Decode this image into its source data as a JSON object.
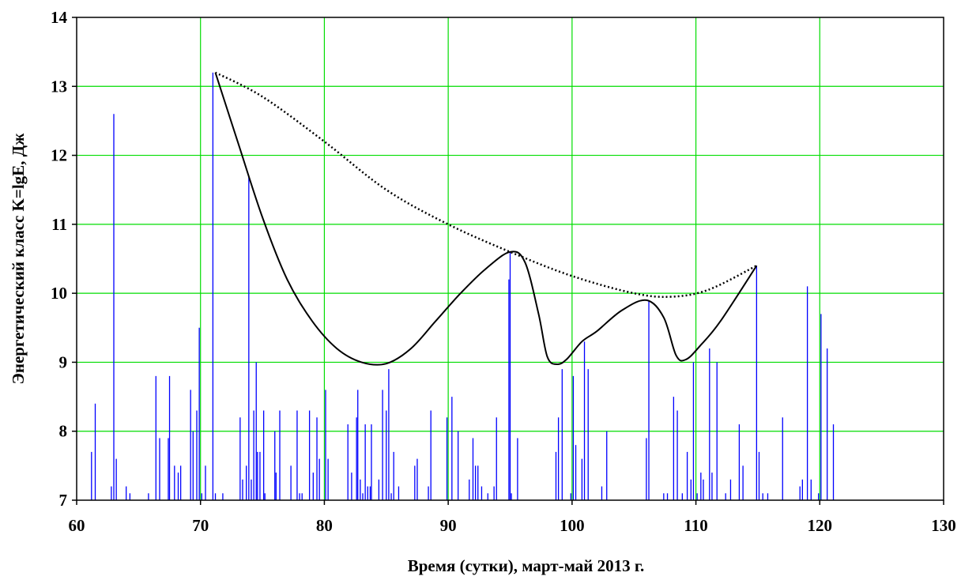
{
  "chart_data": {
    "type": "line",
    "title": "",
    "xlabel": "Время (сутки), март-май 2013 г.",
    "ylabel": "Энергетический класс K=lgE, Дж",
    "xlim": [
      60,
      130
    ],
    "ylim": [
      7,
      14
    ],
    "xticks": [
      60,
      70,
      80,
      90,
      100,
      110,
      120,
      130
    ],
    "yticks": [
      7,
      8,
      9,
      10,
      11,
      12,
      13,
      14
    ],
    "grid": true,
    "legend": "none",
    "colors": {
      "events": "#0000ff",
      "grid": "#00dd00",
      "curve": "#000000",
      "envelope": "#000000",
      "axes": "#000000"
    },
    "series": [
      {
        "kind": "impulses",
        "baseline": 7,
        "points": [
          [
            61.2,
            7.7
          ],
          [
            61.5,
            8.4
          ],
          [
            62.8,
            7.2
          ],
          [
            63.0,
            12.6
          ],
          [
            63.2,
            7.6
          ],
          [
            64.0,
            7.2
          ],
          [
            64.3,
            7.1
          ],
          [
            65.8,
            7.1
          ],
          [
            66.4,
            8.8
          ],
          [
            66.7,
            7.9
          ],
          [
            67.4,
            7.9
          ],
          [
            67.5,
            8.8
          ],
          [
            67.9,
            7.5
          ],
          [
            68.2,
            7.4
          ],
          [
            68.4,
            7.5
          ],
          [
            69.2,
            8.6
          ],
          [
            69.4,
            8.0
          ],
          [
            69.7,
            8.3
          ],
          [
            69.9,
            9.5
          ],
          [
            70.1,
            7.1
          ],
          [
            70.4,
            7.5
          ],
          [
            71.0,
            13.2
          ],
          [
            71.2,
            7.1
          ],
          [
            71.8,
            7.1
          ],
          [
            73.2,
            8.2
          ],
          [
            73.4,
            7.3
          ],
          [
            73.7,
            7.5
          ],
          [
            73.9,
            11.7
          ],
          [
            74.1,
            7.3
          ],
          [
            74.3,
            8.3
          ],
          [
            74.5,
            9.0
          ],
          [
            74.6,
            7.7
          ],
          [
            74.8,
            7.7
          ],
          [
            75.1,
            8.3
          ],
          [
            75.2,
            7.1
          ],
          [
            76.0,
            8.0
          ],
          [
            76.1,
            7.4
          ],
          [
            76.4,
            8.3
          ],
          [
            77.3,
            7.5
          ],
          [
            77.8,
            8.3
          ],
          [
            78.0,
            7.1
          ],
          [
            78.2,
            7.1
          ],
          [
            78.8,
            8.3
          ],
          [
            79.1,
            7.4
          ],
          [
            79.4,
            8.2
          ],
          [
            79.6,
            7.6
          ],
          [
            80.1,
            8.6
          ],
          [
            80.3,
            7.6
          ],
          [
            81.9,
            8.1
          ],
          [
            82.2,
            7.4
          ],
          [
            82.6,
            8.2
          ],
          [
            82.7,
            8.6
          ],
          [
            82.9,
            7.3
          ],
          [
            83.1,
            7.1
          ],
          [
            83.3,
            8.1
          ],
          [
            83.5,
            7.2
          ],
          [
            83.7,
            7.2
          ],
          [
            83.8,
            8.1
          ],
          [
            84.4,
            7.3
          ],
          [
            84.7,
            8.6
          ],
          [
            85.0,
            8.3
          ],
          [
            85.2,
            8.9
          ],
          [
            85.4,
            7.1
          ],
          [
            85.6,
            7.7
          ],
          [
            86.0,
            7.2
          ],
          [
            87.3,
            7.5
          ],
          [
            87.5,
            7.6
          ],
          [
            88.4,
            7.2
          ],
          [
            88.6,
            8.3
          ],
          [
            89.9,
            8.2
          ],
          [
            90.3,
            8.5
          ],
          [
            90.8,
            8.0
          ],
          [
            91.7,
            7.3
          ],
          [
            92.0,
            7.9
          ],
          [
            92.2,
            7.5
          ],
          [
            92.4,
            7.5
          ],
          [
            92.7,
            7.2
          ],
          [
            93.2,
            7.1
          ],
          [
            93.7,
            7.2
          ],
          [
            93.9,
            8.2
          ],
          [
            94.9,
            10.2
          ],
          [
            95.0,
            10.6
          ],
          [
            95.1,
            7.1
          ],
          [
            95.6,
            7.9
          ],
          [
            98.7,
            7.7
          ],
          [
            98.9,
            8.2
          ],
          [
            99.2,
            8.9
          ],
          [
            99.9,
            7.1
          ],
          [
            100.1,
            8.8
          ],
          [
            100.3,
            7.8
          ],
          [
            100.8,
            7.6
          ],
          [
            101.0,
            9.3
          ],
          [
            101.3,
            8.9
          ],
          [
            102.4,
            7.2
          ],
          [
            102.8,
            8.0
          ],
          [
            106.0,
            7.9
          ],
          [
            106.2,
            9.9
          ],
          [
            107.4,
            7.1
          ],
          [
            107.7,
            7.1
          ],
          [
            108.2,
            8.5
          ],
          [
            108.5,
            8.3
          ],
          [
            108.9,
            7.1
          ],
          [
            109.3,
            7.7
          ],
          [
            109.6,
            7.3
          ],
          [
            109.8,
            9.0
          ],
          [
            110.1,
            7.1
          ],
          [
            110.4,
            7.4
          ],
          [
            110.6,
            7.3
          ],
          [
            111.1,
            9.2
          ],
          [
            111.3,
            7.4
          ],
          [
            111.7,
            9.0
          ],
          [
            112.4,
            7.1
          ],
          [
            112.8,
            7.3
          ],
          [
            113.5,
            8.1
          ],
          [
            113.8,
            7.5
          ],
          [
            114.9,
            10.4
          ],
          [
            115.1,
            7.7
          ],
          [
            115.4,
            7.1
          ],
          [
            115.8,
            7.1
          ],
          [
            117.0,
            8.2
          ],
          [
            118.4,
            7.2
          ],
          [
            118.6,
            7.3
          ],
          [
            119.0,
            10.1
          ],
          [
            119.3,
            7.3
          ],
          [
            119.9,
            7.1
          ],
          [
            120.1,
            9.7
          ],
          [
            120.6,
            9.2
          ],
          [
            121.1,
            8.1
          ]
        ]
      },
      {
        "kind": "smooth-curve",
        "style": "solid",
        "points": [
          [
            71.2,
            13.2
          ],
          [
            73.0,
            12.2
          ],
          [
            75.0,
            11.1
          ],
          [
            77.0,
            10.2
          ],
          [
            79.0,
            9.6
          ],
          [
            81.0,
            9.2
          ],
          [
            83.0,
            9.0
          ],
          [
            85.0,
            8.98
          ],
          [
            87.0,
            9.2
          ],
          [
            89.0,
            9.6
          ],
          [
            91.0,
            10.0
          ],
          [
            93.0,
            10.35
          ],
          [
            95.0,
            10.6
          ],
          [
            96.2,
            10.45
          ],
          [
            97.3,
            9.7
          ],
          [
            98.0,
            9.08
          ],
          [
            98.8,
            8.97
          ],
          [
            99.6,
            9.05
          ],
          [
            100.8,
            9.3
          ],
          [
            102.0,
            9.45
          ],
          [
            104.0,
            9.75
          ],
          [
            106.0,
            9.9
          ],
          [
            107.4,
            9.65
          ],
          [
            108.4,
            9.1
          ],
          [
            109.2,
            9.04
          ],
          [
            110.4,
            9.25
          ],
          [
            112.0,
            9.6
          ],
          [
            114.9,
            10.4
          ]
        ]
      },
      {
        "kind": "smooth-curve",
        "style": "dotted",
        "points": [
          [
            71.2,
            13.2
          ],
          [
            75.0,
            12.85
          ],
          [
            80.0,
            12.2
          ],
          [
            85.0,
            11.5
          ],
          [
            90.0,
            11.0
          ],
          [
            95.0,
            10.6
          ],
          [
            100.0,
            10.25
          ],
          [
            105.0,
            10.0
          ],
          [
            108.0,
            9.95
          ],
          [
            111.0,
            10.05
          ],
          [
            114.9,
            10.4
          ]
        ]
      }
    ]
  }
}
